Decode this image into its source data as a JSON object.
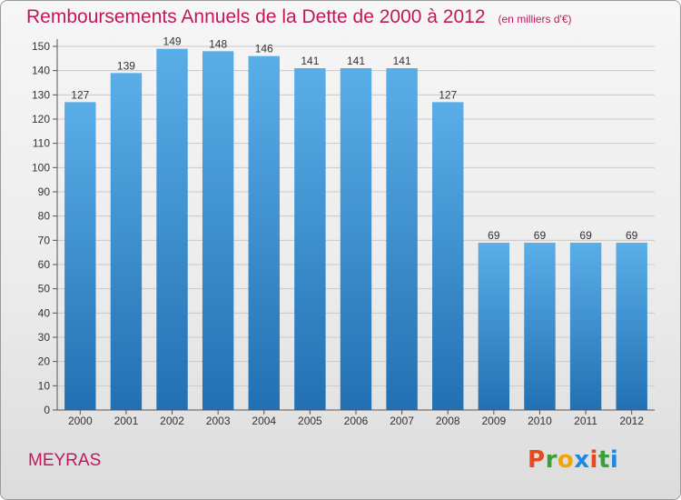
{
  "header": {
    "title": "Remboursements Annuels de la Dette de 2000 à 2012",
    "unit": "(en milliers d'€)"
  },
  "footer": {
    "place": "MEYRAS",
    "brand": "Proxiti",
    "brand_colors": [
      "#e8491d",
      "#3a9f3a",
      "#f0a500",
      "#1e88e5",
      "#e8491d",
      "#3a9f3a",
      "#1e88e5"
    ]
  },
  "chart_data": {
    "type": "bar",
    "title": "Remboursements Annuels de la Dette de 2000 à 2012",
    "categories": [
      "2000",
      "2001",
      "2002",
      "2003",
      "2004",
      "2005",
      "2006",
      "2007",
      "2008",
      "2009",
      "2010",
      "2011",
      "2012"
    ],
    "values": [
      127,
      139,
      149,
      148,
      146,
      141,
      141,
      141,
      127,
      69,
      69,
      69,
      69
    ],
    "ylim": [
      0,
      150
    ],
    "yticks": [
      0,
      10,
      20,
      30,
      40,
      50,
      60,
      70,
      80,
      90,
      100,
      110,
      120,
      130,
      140,
      150
    ],
    "grid": true,
    "colors": {
      "bar_top": "#5aaee8",
      "bar_bottom": "#2270b3",
      "text": "#333333",
      "grid": "#c8c8c8"
    }
  }
}
